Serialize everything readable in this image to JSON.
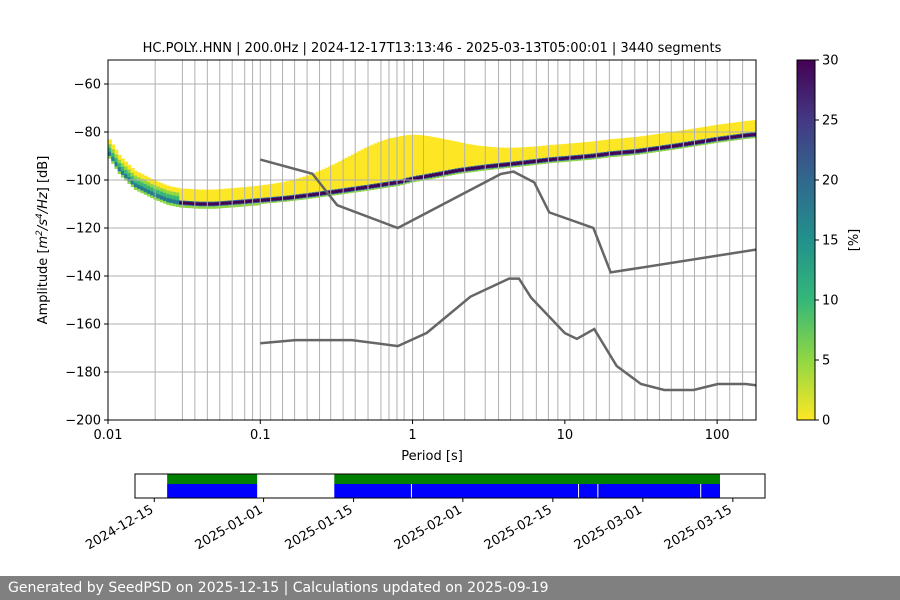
{
  "chart_data": {
    "type": "heatmap",
    "title": "HC.POLY..HNN | 200.0Hz | 2024-12-17T13:13:46 - 2025-03-13T05:00:01 | 3440 segments",
    "xlabel": "Period [s]",
    "ylabel_main": "Amplitude [",
    "ylabel_unit_m": "m",
    "ylabel_unit_2": "2",
    "ylabel_unit_s": "/s",
    "ylabel_unit_4": "4",
    "ylabel_unit_hz": "/Hz",
    "ylabel_tail": "] [dB]",
    "x_scale": "log",
    "xlim": [
      0.01,
      180
    ],
    "ylim": [
      -200,
      -50
    ],
    "x_ticks": [
      {
        "v": 0.01,
        "label": "0.01"
      },
      {
        "v": 0.1,
        "label": "0.1"
      },
      {
        "v": 1,
        "label": "1"
      },
      {
        "v": 10,
        "label": "10"
      },
      {
        "v": 100,
        "label": "100"
      }
    ],
    "y_ticks": [
      {
        "v": -60,
        "label": "−60"
      },
      {
        "v": -80,
        "label": "−80"
      },
      {
        "v": -100,
        "label": "−100"
      },
      {
        "v": -120,
        "label": "−120"
      },
      {
        "v": -140,
        "label": "−140"
      },
      {
        "v": -160,
        "label": "−160"
      },
      {
        "v": -180,
        "label": "−180"
      },
      {
        "v": -200,
        "label": "−200"
      }
    ],
    "vgrid_periods": [
      0.0204,
      0.0308,
      0.0372,
      0.0449,
      0.0542,
      0.0654,
      0.079,
      0.089,
      0.1,
      0.117,
      0.14,
      0.168,
      0.203,
      0.245,
      0.29,
      0.35,
      0.42,
      0.51,
      0.62,
      0.7,
      0.79,
      0.88,
      1.0,
      1.18,
      1.6,
      2.2,
      3.0,
      3.67,
      4.4,
      5.3,
      6.5,
      7.8,
      9.0,
      10.8,
      13.3,
      16.1,
      19.6,
      23.7,
      28.8,
      34.8,
      41.8,
      50.0,
      60.0,
      71.0,
      84.0,
      100,
      121,
      147
    ],
    "percentile_curve": [
      [
        0.01,
        -88
      ],
      [
        0.012,
        -96
      ],
      [
        0.015,
        -102
      ],
      [
        0.02,
        -106
      ],
      [
        0.025,
        -108.5
      ],
      [
        0.03,
        -109.5
      ],
      [
        0.04,
        -110
      ],
      [
        0.05,
        -110
      ],
      [
        0.07,
        -109.3
      ],
      [
        0.1,
        -108.5
      ],
      [
        0.15,
        -107.5
      ],
      [
        0.2,
        -106.5
      ],
      [
        0.3,
        -105
      ],
      [
        0.5,
        -103
      ],
      [
        0.8,
        -101
      ],
      [
        1,
        -99.5
      ],
      [
        1.5,
        -97.5
      ],
      [
        2,
        -96
      ],
      [
        3,
        -94.5
      ],
      [
        5,
        -93
      ],
      [
        8,
        -91.5
      ],
      [
        10,
        -91
      ],
      [
        15,
        -90
      ],
      [
        20,
        -89
      ],
      [
        30,
        -88
      ],
      [
        50,
        -86
      ],
      [
        80,
        -84
      ],
      [
        100,
        -83
      ],
      [
        150,
        -81.5
      ],
      [
        180,
        -81
      ]
    ],
    "nhnm": [
      [
        0.1,
        -91.5
      ],
      [
        0.22,
        -97.4
      ],
      [
        0.32,
        -110.5
      ],
      [
        0.8,
        -120
      ],
      [
        3.8,
        -97.5
      ],
      [
        4.6,
        -96.5
      ],
      [
        6.3,
        -101
      ],
      [
        7.9,
        -113.5
      ],
      [
        15.4,
        -120
      ],
      [
        20,
        -138.5
      ],
      [
        180,
        -129
      ]
    ],
    "nlnm": [
      [
        0.1,
        -168
      ],
      [
        0.17,
        -166.7
      ],
      [
        0.4,
        -166.7
      ],
      [
        0.8,
        -169.2
      ],
      [
        1.24,
        -163.7
      ],
      [
        2.4,
        -148.6
      ],
      [
        4.3,
        -141.1
      ],
      [
        5,
        -141.1
      ],
      [
        6,
        -149
      ],
      [
        10,
        -163.8
      ],
      [
        12,
        -166.2
      ],
      [
        15.6,
        -162.1
      ],
      [
        21.9,
        -177.5
      ],
      [
        31.6,
        -185
      ],
      [
        45,
        -187.5
      ],
      [
        70,
        -187.5
      ],
      [
        101,
        -185
      ],
      [
        154,
        -185
      ],
      [
        180,
        -185.5
      ]
    ],
    "colorbar": {
      "label": "[%]",
      "range": [
        0,
        30
      ],
      "ticks": [
        {
          "v": 0,
          "label": "0"
        },
        {
          "v": 5,
          "label": "5"
        },
        {
          "v": 10,
          "label": "10"
        },
        {
          "v": 15,
          "label": "15"
        },
        {
          "v": 20,
          "label": "20"
        },
        {
          "v": 25,
          "label": "25"
        },
        {
          "v": 30,
          "label": "30"
        }
      ],
      "colors": [
        "#fde725",
        "#90d743",
        "#35b779",
        "#21918c",
        "#31688e",
        "#443983",
        "#440154"
      ]
    },
    "availability": {
      "range": [
        "2024-12-12",
        "2025-03-20"
      ],
      "ticks": [
        {
          "date": "2024-12-15",
          "label": "2024-12-15"
        },
        {
          "date": "2025-01-01",
          "label": "2025-01-01"
        },
        {
          "date": "2025-01-15",
          "label": "2025-01-15"
        },
        {
          "date": "2025-02-01",
          "label": "2025-02-01"
        },
        {
          "date": "2025-02-15",
          "label": "2025-02-15"
        },
        {
          "date": "2025-03-01",
          "label": "2025-03-01"
        },
        {
          "date": "2025-03-15",
          "label": "2025-03-15"
        }
      ],
      "data_segments": [
        [
          "2024-12-17",
          "2024-12-31"
        ],
        [
          "2025-01-12",
          "2025-03-13"
        ]
      ],
      "gap_markers": [
        "2025-01-24",
        "2025-02-19",
        "2025-02-22",
        "2025-03-10"
      ],
      "data_color": "#0000ff",
      "used_color": "#008000"
    }
  },
  "footer": {
    "text": "Generated by SeedPSD on 2025-12-15 | Calculations updated on 2025-09-19"
  }
}
